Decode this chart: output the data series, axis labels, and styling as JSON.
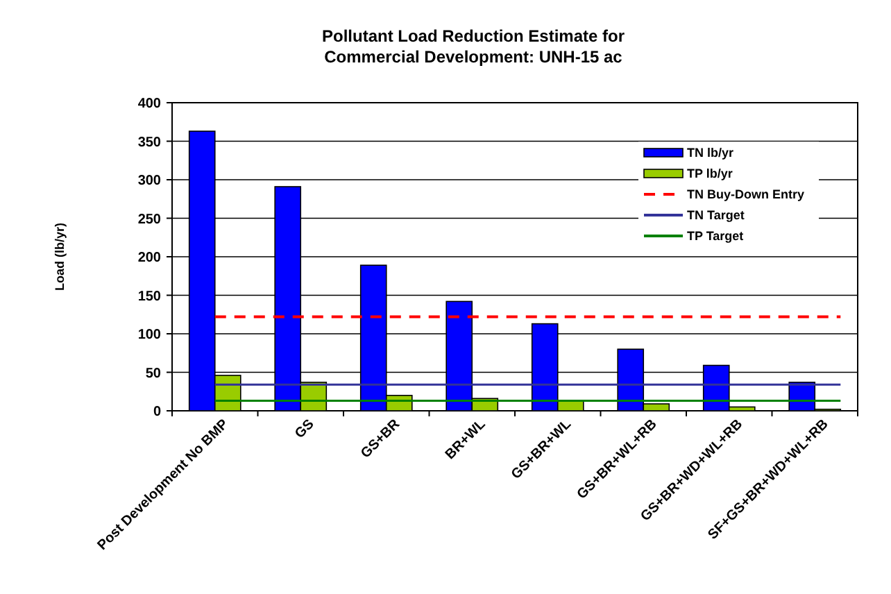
{
  "chart_data": {
    "type": "bar",
    "title": "Pollutant Load Reduction Estimate for Commercial Development: UNH-15 ac",
    "ylabel": "Load (lb/yr)",
    "categories": [
      "Post Development No BMP",
      "GS",
      "GS+BR",
      "BR+WL",
      "GS+BR+WL",
      "GS+BR+WL+RB",
      "GS+BR+WD+WL+RB",
      "SF+GS+BR+WD+WL+RB"
    ],
    "series": [
      {
        "name": "TN lb/yr",
        "color": "#0000ff",
        "values": [
          363,
          291,
          189,
          142,
          113,
          80,
          59,
          37
        ]
      },
      {
        "name": "TP lb/yr",
        "color": "#99cc00",
        "values": [
          46,
          37,
          20,
          16,
          13,
          9,
          5,
          2
        ]
      }
    ],
    "ref_lines": [
      {
        "axis": "y",
        "value": 122,
        "label": "TN Buy-Down Entry",
        "color": "#ff0000",
        "line_style": "dashed"
      },
      {
        "axis": "y",
        "value": 34,
        "label": "TN Target",
        "color": "#333399",
        "line_style": "solid"
      },
      {
        "axis": "y",
        "value": 13,
        "label": "TP Target",
        "color": "#008000",
        "line_style": "solid"
      }
    ],
    "ylim": [
      0,
      400
    ],
    "yticks": [
      0,
      50,
      100,
      150,
      200,
      250,
      300,
      350,
      400
    ],
    "grid": "y",
    "legend": "top right"
  }
}
